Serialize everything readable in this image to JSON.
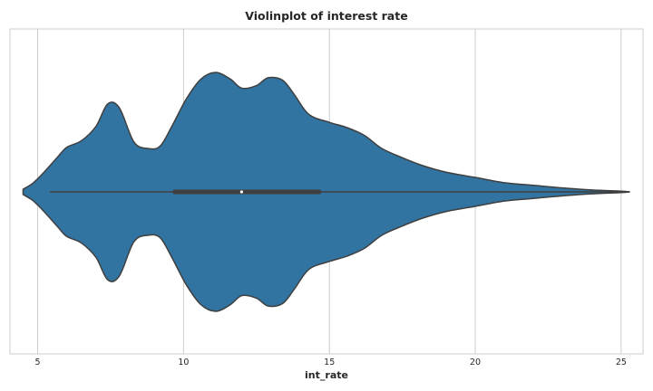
{
  "chart_data": {
    "type": "violin",
    "title": "Violinplot of interest rate",
    "xlabel": "int_rate",
    "ylabel": "",
    "xlim": [
      4.05,
      25.75
    ],
    "xticks": [
      5,
      10,
      15,
      20,
      25
    ],
    "grid": true,
    "color": "#3274a1",
    "edge_color": "#3f3f3f",
    "density_profile": [
      {
        "x": 4.5,
        "w": 0.02
      },
      {
        "x": 4.8,
        "w": 0.06
      },
      {
        "x": 5.0,
        "w": 0.1
      },
      {
        "x": 5.3,
        "w": 0.17
      },
      {
        "x": 5.7,
        "w": 0.27
      },
      {
        "x": 6.0,
        "w": 0.34
      },
      {
        "x": 6.5,
        "w": 0.39
      },
      {
        "x": 7.0,
        "w": 0.5
      },
      {
        "x": 7.4,
        "w": 0.67
      },
      {
        "x": 7.8,
        "w": 0.64
      },
      {
        "x": 8.3,
        "w": 0.38
      },
      {
        "x": 8.8,
        "w": 0.33
      },
      {
        "x": 9.2,
        "w": 0.35
      },
      {
        "x": 9.6,
        "w": 0.5
      },
      {
        "x": 10.1,
        "w": 0.71
      },
      {
        "x": 10.6,
        "w": 0.86
      },
      {
        "x": 11.1,
        "w": 0.91
      },
      {
        "x": 11.6,
        "w": 0.86
      },
      {
        "x": 12.0,
        "w": 0.79
      },
      {
        "x": 12.5,
        "w": 0.81
      },
      {
        "x": 12.9,
        "w": 0.87
      },
      {
        "x": 13.4,
        "w": 0.85
      },
      {
        "x": 13.8,
        "w": 0.74
      },
      {
        "x": 14.3,
        "w": 0.59
      },
      {
        "x": 15.0,
        "w": 0.53
      },
      {
        "x": 15.6,
        "w": 0.49
      },
      {
        "x": 16.2,
        "w": 0.43
      },
      {
        "x": 16.8,
        "w": 0.33
      },
      {
        "x": 17.5,
        "w": 0.26
      },
      {
        "x": 18.2,
        "w": 0.2
      },
      {
        "x": 19.0,
        "w": 0.15
      },
      {
        "x": 20.0,
        "w": 0.11
      },
      {
        "x": 21.0,
        "w": 0.07
      },
      {
        "x": 22.0,
        "w": 0.05
      },
      {
        "x": 23.0,
        "w": 0.03
      },
      {
        "x": 24.0,
        "w": 0.015
      },
      {
        "x": 25.0,
        "w": 0.005
      },
      {
        "x": 25.3,
        "w": 0.0
      }
    ],
    "box": {
      "whisker_low": 5.42,
      "q1": 9.63,
      "median": 11.99,
      "q3": 14.72,
      "whisker_high": 25.3
    }
  }
}
